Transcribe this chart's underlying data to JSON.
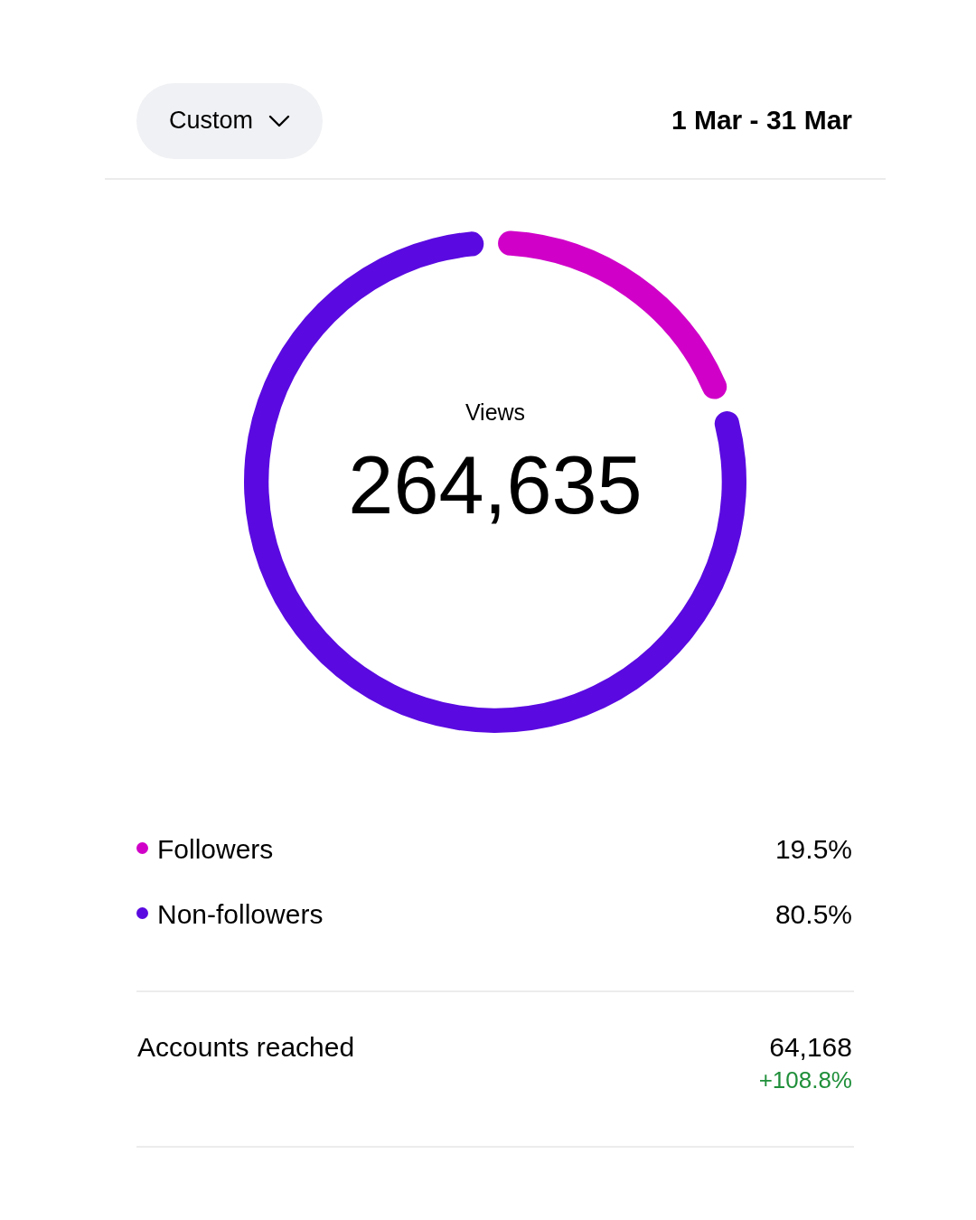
{
  "chart_data": {
    "type": "donut",
    "title": "Views",
    "subtitle": "264,635",
    "categories": [
      "Followers",
      "Non-followers"
    ],
    "values": [
      19.5,
      80.5
    ],
    "colors": [
      "#d000c8",
      "#5a0ae0"
    ],
    "value_labels": [
      "19.5%",
      "80.5%"
    ],
    "legend": "bottom",
    "annotations": [
      "Custom",
      "1 Mar - 31 Mar",
      "Accounts reached",
      "64,168",
      "+108.8%"
    ]
  }
}
